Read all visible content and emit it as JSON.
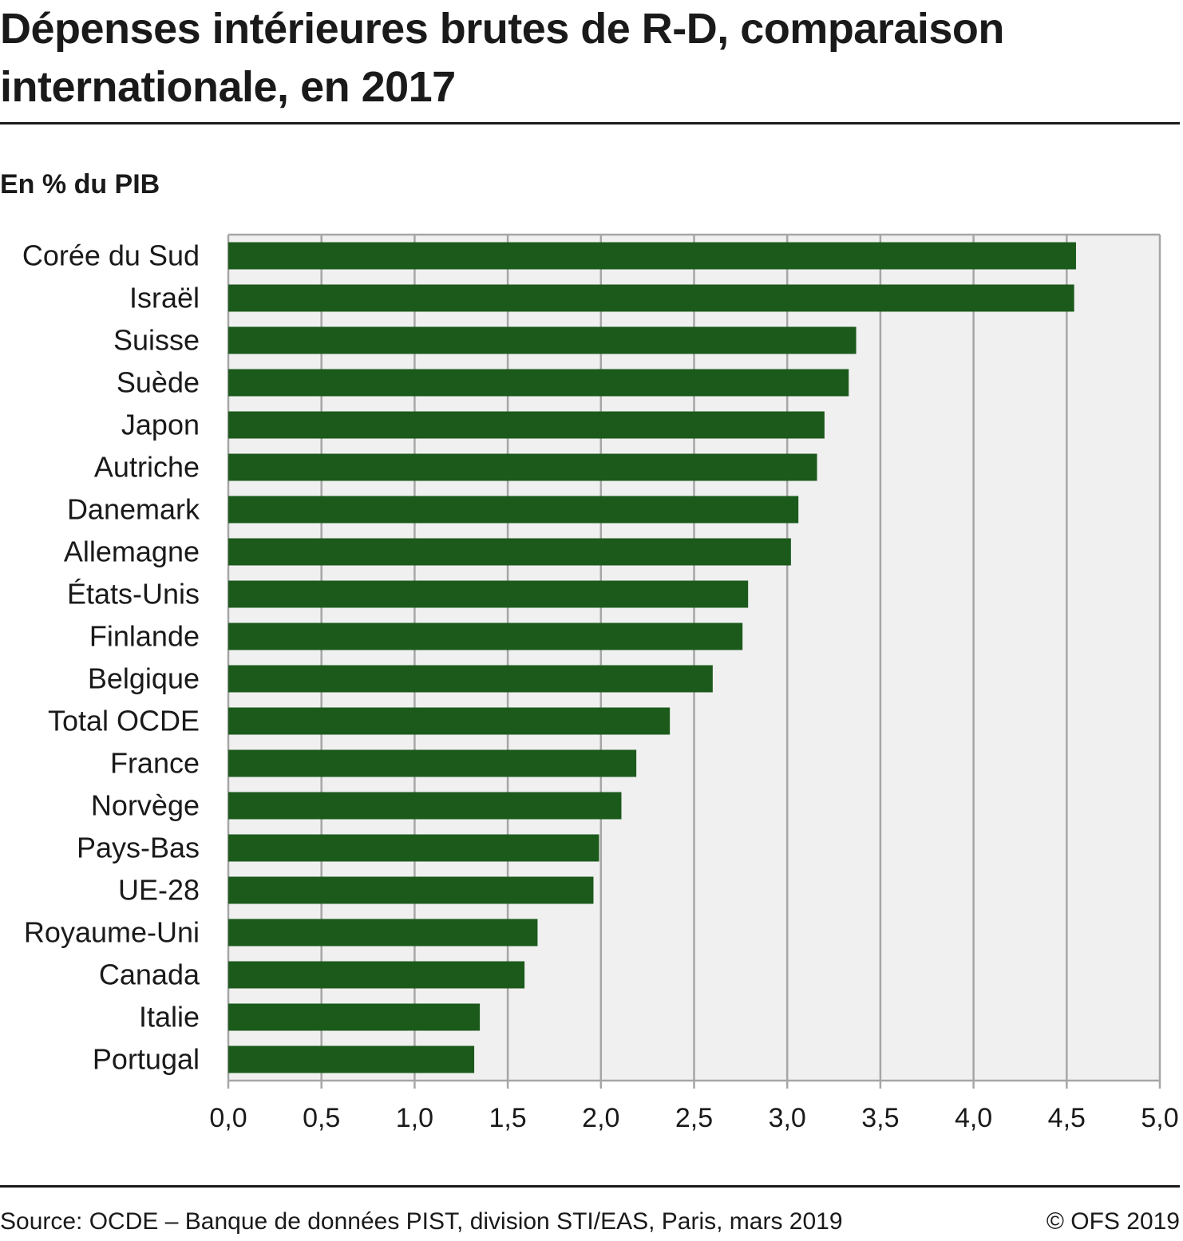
{
  "title": "Dépenses intérieures brutes de R-D, comparaison internationale, en 2017",
  "subtitle": "En % du PIB",
  "footer": {
    "source": "Source: OCDE – Banque de données PIST, division STI/EAS, Paris, mars 2019",
    "copyright": "© OFS 2019"
  },
  "colors": {
    "bar": "#1b5a1b",
    "plot_background": "#f0f0f0",
    "grid": "#a6a6a6",
    "text": "#1a1a1a"
  },
  "chart_data": {
    "type": "bar",
    "orientation": "horizontal",
    "title": "Dépenses intérieures brutes de R-D, comparaison internationale, en 2017",
    "xlabel": "",
    "ylabel": "",
    "unit": "En % du PIB",
    "xlim": [
      0,
      5
    ],
    "xticks": [
      0,
      0.5,
      1,
      1.5,
      2,
      2.5,
      3,
      3.5,
      4,
      4.5,
      5
    ],
    "xtick_labels": [
      "0,0",
      "0,5",
      "1,0",
      "1,5",
      "2,0",
      "2,5",
      "3,0",
      "3,5",
      "4,0",
      "4,5",
      "5,0"
    ],
    "grid": true,
    "categories": [
      "Corée du Sud",
      "Israël",
      "Suisse",
      "Suède",
      "Japon",
      "Autriche",
      "Danemark",
      "Allemagne",
      "États-Unis",
      "Finlande",
      "Belgique",
      "Total OCDE",
      "France",
      "Norvège",
      "Pays-Bas",
      "UE-28",
      "Royaume-Uni",
      "Canada",
      "Italie",
      "Portugal"
    ],
    "values": [
      4.55,
      4.54,
      3.37,
      3.33,
      3.2,
      3.16,
      3.06,
      3.02,
      2.79,
      2.76,
      2.6,
      2.37,
      2.19,
      2.11,
      1.99,
      1.96,
      1.66,
      1.59,
      1.35,
      1.32
    ]
  }
}
